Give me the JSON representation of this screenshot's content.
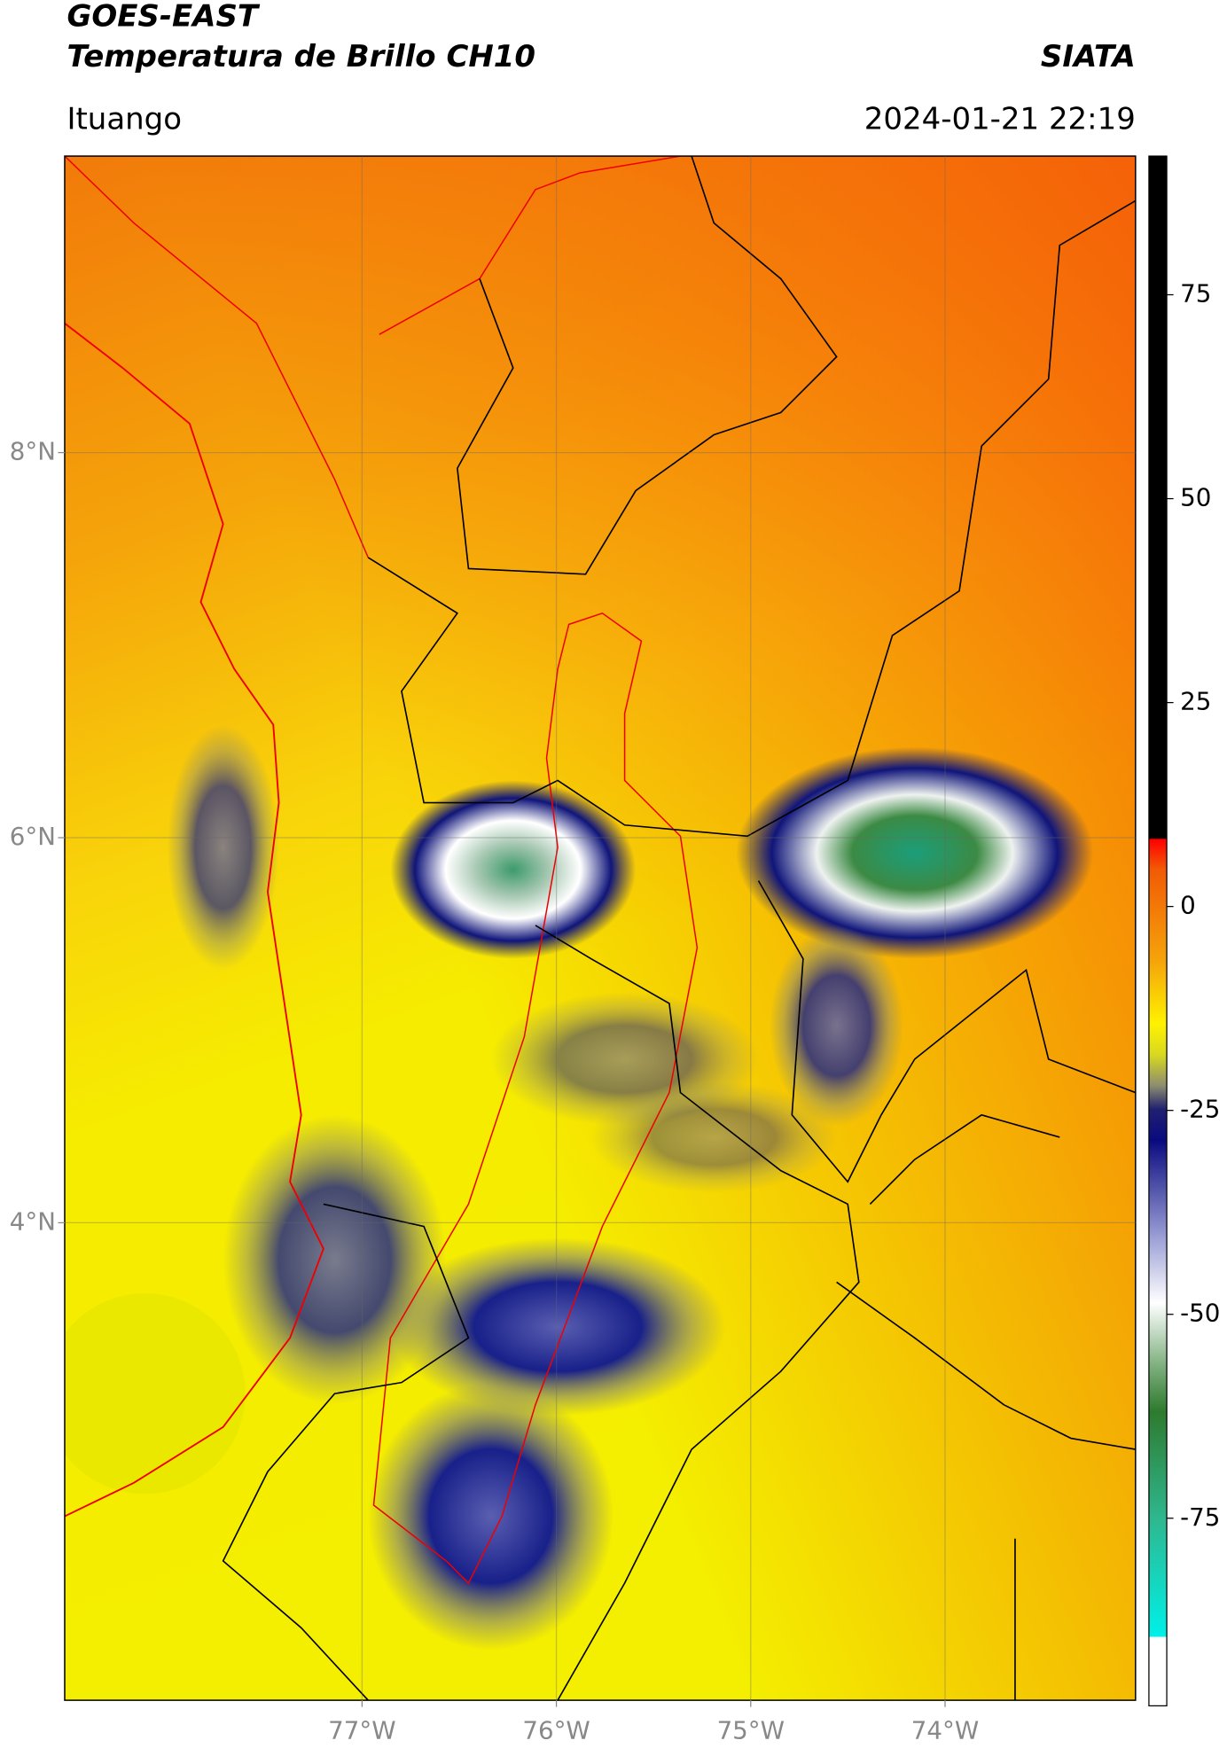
{
  "header": {
    "title_line1": "GOES-EAST",
    "title_line2": "Temperatura de Brillo CH10",
    "org": "SIATA",
    "location": "Ituango",
    "datetime": "2024-01-21 22:19"
  },
  "map": {
    "xlim": [
      -78.53,
      -73.02
    ],
    "ylim": [
      1.52,
      9.54
    ],
    "xticks": [
      {
        "value": -77,
        "label": "77°W"
      },
      {
        "value": -76,
        "label": "76°W"
      },
      {
        "value": -75,
        "label": "75°W"
      },
      {
        "value": -74,
        "label": "74°W"
      }
    ],
    "yticks": [
      {
        "value": 8,
        "label": "8°N"
      },
      {
        "value": 6,
        "label": "6°N"
      },
      {
        "value": 4,
        "label": "4°N"
      }
    ],
    "grid": true
  },
  "colorbar": {
    "clim": [
      -98,
      92
    ],
    "ticks": [
      75,
      50,
      25,
      0,
      -25,
      -50,
      -75
    ]
  }
}
